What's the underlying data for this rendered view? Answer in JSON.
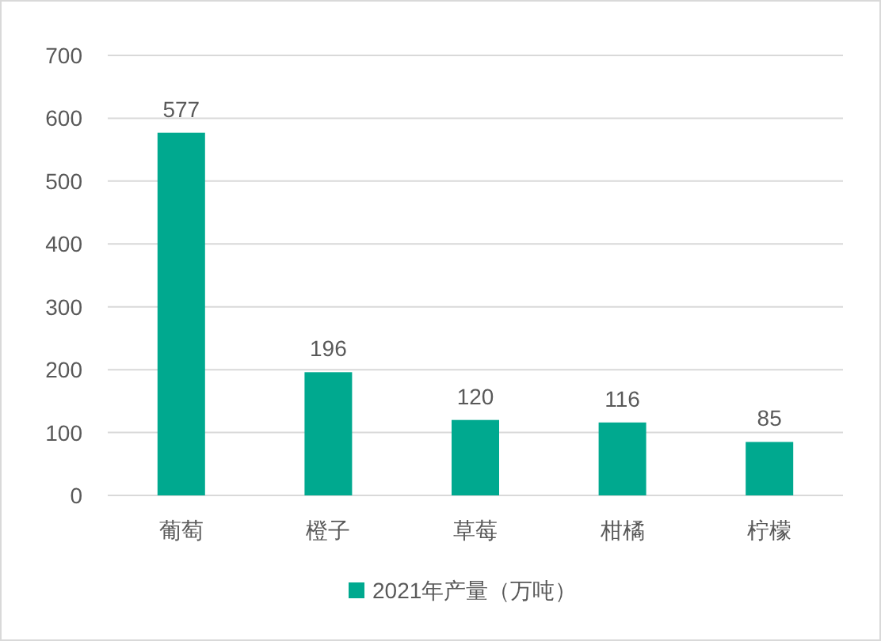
{
  "chart_data": {
    "type": "bar",
    "categories": [
      "葡萄",
      "橙子",
      "草莓",
      "柑橘",
      "柠檬"
    ],
    "series": [
      {
        "name": "2021年产量（万吨）",
        "color": "#00a98f",
        "values": [
          577,
          196,
          120,
          116,
          85
        ]
      }
    ],
    "ylim": [
      0,
      700
    ],
    "yticks": [
      0,
      100,
      200,
      300,
      400,
      500,
      600,
      700
    ],
    "grid": "y",
    "data_labels": true,
    "legend": "bottom"
  }
}
